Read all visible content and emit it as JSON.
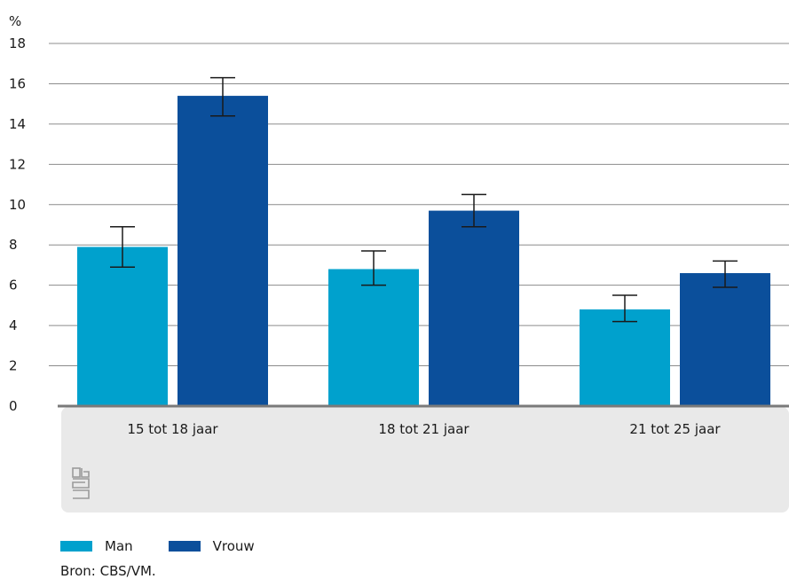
{
  "chart_data": {
    "type": "bar",
    "unit": "%",
    "categories": [
      "15 tot 18 jaar",
      "18 tot 21 jaar",
      "21 tot 25 jaar"
    ],
    "series": [
      {
        "name": "Man",
        "color": "#00a1cd",
        "values": [
          7.9,
          6.8,
          4.8
        ],
        "error_low": [
          6.9,
          6.0,
          4.2
        ],
        "error_high": [
          8.9,
          7.7,
          5.5
        ]
      },
      {
        "name": "Vrouw",
        "color": "#0b4f9b",
        "values": [
          15.4,
          9.7,
          6.6
        ],
        "error_low": [
          14.4,
          8.9,
          5.9
        ],
        "error_high": [
          16.3,
          10.5,
          7.2
        ]
      }
    ],
    "ylim": [
      0,
      18
    ],
    "yticks": [
      0,
      2,
      4,
      6,
      8,
      10,
      12,
      14,
      16,
      18
    ],
    "grid": true,
    "legend_position": "bottom-left"
  },
  "source": "Bron: CBS/VM.",
  "logo": "cbs-logo-icon"
}
